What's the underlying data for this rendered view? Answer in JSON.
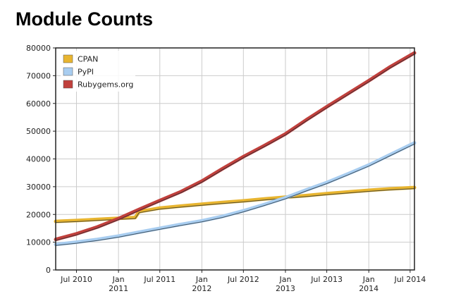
{
  "page": {
    "title": "Module Counts"
  },
  "chart_data": {
    "type": "line",
    "title": "Module Counts",
    "xlabel": "",
    "ylabel": "",
    "x_range": [
      "2010-04-01",
      "2014-07-20"
    ],
    "ylim": [
      0,
      80000
    ],
    "y_ticks": [
      0,
      10000,
      20000,
      30000,
      40000,
      50000,
      60000,
      70000,
      80000
    ],
    "x_ticks": [
      {
        "date": "2010-07-01",
        "label": "Jul 2010"
      },
      {
        "date": "2011-01-01",
        "label": "Jan 2011"
      },
      {
        "date": "2011-07-01",
        "label": "Jul 2011"
      },
      {
        "date": "2012-01-01",
        "label": "Jan 2012"
      },
      {
        "date": "2012-07-01",
        "label": "Jul 2012"
      },
      {
        "date": "2013-01-01",
        "label": "Jan 2013"
      },
      {
        "date": "2013-07-01",
        "label": "Jul 2013"
      },
      {
        "date": "2014-01-01",
        "label": "Jan 2014"
      },
      {
        "date": "2014-07-01",
        "label": "Jul 2014"
      }
    ],
    "grid": true,
    "legend_position": "top-left",
    "series": [
      {
        "name": "CPAN",
        "color": "#e8b530",
        "points": [
          [
            "2010-04-01",
            17500
          ],
          [
            "2010-07-01",
            17800
          ],
          [
            "2010-10-01",
            18200
          ],
          [
            "2011-01-01",
            18600
          ],
          [
            "2011-03-15",
            18900
          ],
          [
            "2011-04-01",
            21000
          ],
          [
            "2011-07-01",
            22300
          ],
          [
            "2011-10-01",
            23000
          ],
          [
            "2012-01-01",
            23700
          ],
          [
            "2012-04-01",
            24300
          ],
          [
            "2012-07-01",
            24900
          ],
          [
            "2012-10-01",
            25600
          ],
          [
            "2013-01-01",
            26200
          ],
          [
            "2013-04-01",
            26800
          ],
          [
            "2013-07-01",
            27500
          ],
          [
            "2013-10-01",
            28100
          ],
          [
            "2014-01-01",
            28700
          ],
          [
            "2014-04-01",
            29200
          ],
          [
            "2014-07-20",
            29700
          ]
        ]
      },
      {
        "name": "PyPI",
        "color": "#a8cdf0",
        "points": [
          [
            "2010-04-01",
            9200
          ],
          [
            "2010-07-01",
            10000
          ],
          [
            "2010-10-01",
            11000
          ],
          [
            "2011-01-01",
            12200
          ],
          [
            "2011-04-01",
            13600
          ],
          [
            "2011-07-01",
            15000
          ],
          [
            "2011-10-01",
            16400
          ],
          [
            "2012-01-01",
            17700
          ],
          [
            "2012-04-01",
            19300
          ],
          [
            "2012-07-01",
            21300
          ],
          [
            "2012-10-01",
            23600
          ],
          [
            "2013-01-01",
            26000
          ],
          [
            "2013-04-01",
            28800
          ],
          [
            "2013-07-01",
            31500
          ],
          [
            "2013-10-01",
            34600
          ],
          [
            "2014-01-01",
            37800
          ],
          [
            "2014-04-01",
            41400
          ],
          [
            "2014-07-20",
            45800
          ]
        ]
      },
      {
        "name": "Rubygems.org",
        "color": "#c0403c",
        "points": [
          [
            "2010-04-01",
            11000
          ],
          [
            "2010-07-01",
            13000
          ],
          [
            "2010-10-01",
            15500
          ],
          [
            "2011-01-01",
            18500
          ],
          [
            "2011-04-01",
            21800
          ],
          [
            "2011-07-01",
            25000
          ],
          [
            "2011-10-01",
            28200
          ],
          [
            "2012-01-01",
            32000
          ],
          [
            "2012-04-01",
            36500
          ],
          [
            "2012-07-01",
            40800
          ],
          [
            "2012-10-01",
            44800
          ],
          [
            "2013-01-01",
            49000
          ],
          [
            "2013-04-01",
            54000
          ],
          [
            "2013-07-01",
            58800
          ],
          [
            "2013-10-01",
            63500
          ],
          [
            "2014-01-01",
            68200
          ],
          [
            "2014-04-01",
            73000
          ],
          [
            "2014-07-20",
            78200
          ]
        ]
      }
    ]
  }
}
